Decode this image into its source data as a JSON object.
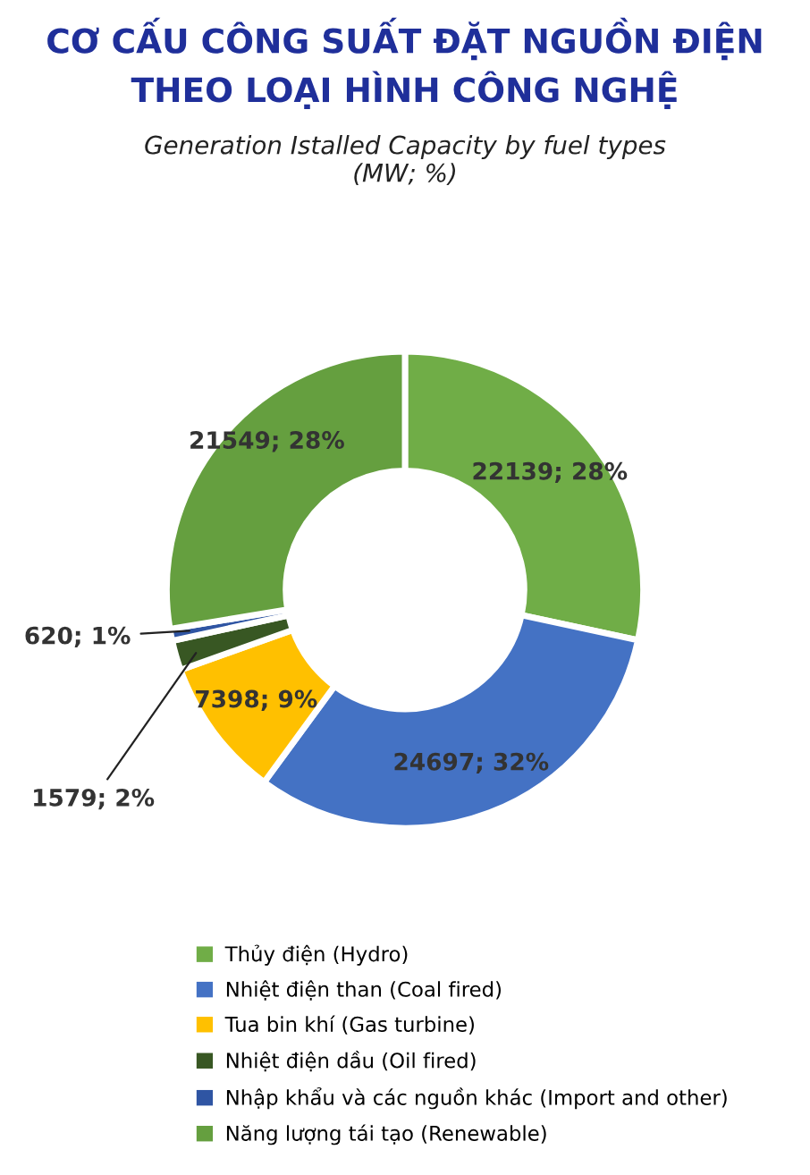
{
  "chart_data": {
    "type": "donut",
    "title": "CƠ CẤU CÔNG SUẤT ĐẶT NGUỒN ĐIỆN\nTHEO LOẠI HÌNH CÔNG NGHỆ",
    "subtitle": "Generation Istalled Capacity by fuel types\n(MW; %)",
    "categories": [
      "Thủy điện (Hydro)",
      "Nhiệt điện than (Coal fired)",
      "Tua bin khí (Gas turbine)",
      "Nhiệt điện dầu (Oil fired)",
      "Nhập khẩu và các nguồn khác (Import and other)",
      "Năng lượng tái tạo (Renewable)"
    ],
    "values": [
      22139,
      24697,
      7398,
      1579,
      620,
      21549
    ],
    "value_labels": [
      "22139; 28%",
      "24697; 32%",
      "7398; 9%",
      "1579; 2%",
      "620; 1%",
      "21549; 28%"
    ],
    "colors": [
      "#70ad47",
      "#4472c4",
      "#ffc000",
      "#385723",
      "#2f55a3",
      "#659f3f"
    ],
    "legend": "bottom"
  }
}
